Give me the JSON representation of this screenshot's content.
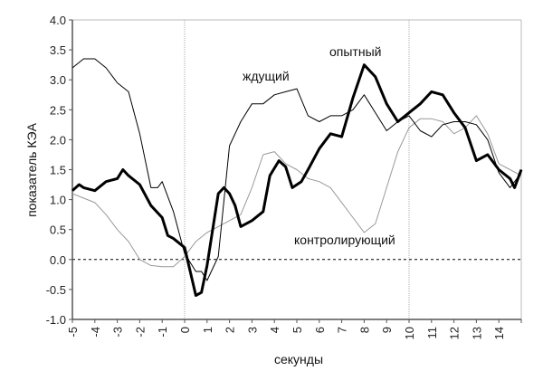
{
  "chart_data": {
    "type": "line",
    "title": "",
    "xlabel": "секунды",
    "ylabel": "показатель КЭА",
    "xlim": [
      -5,
      15
    ],
    "ylim": [
      -1.0,
      4.0
    ],
    "xticks": [
      "-5",
      "-4",
      "-3",
      "-2",
      "-1",
      "0",
      "1",
      "2",
      "3",
      "4",
      "5",
      "6",
      "7",
      "8",
      "9",
      "10",
      "11",
      "12",
      "13",
      "14"
    ],
    "yticks": [
      "4.0",
      "3.5",
      "3.0",
      "2.5",
      "2.0",
      "1.5",
      "1.0",
      "0.5",
      "0.0",
      "-0.5",
      "-1.0"
    ],
    "grid": false,
    "reference_lines": {
      "vertical_dotted_at": [
        0,
        10
      ],
      "horizontal_dashed_at": 0
    },
    "series": [
      {
        "name": "опытный",
        "color": "#000000",
        "style": "thick",
        "points": [
          [
            -5,
            1.15
          ],
          [
            -4.7,
            1.25
          ],
          [
            -4.5,
            1.2
          ],
          [
            -4,
            1.15
          ],
          [
            -3.5,
            1.3
          ],
          [
            -3,
            1.35
          ],
          [
            -2.75,
            1.5
          ],
          [
            -2.5,
            1.4
          ],
          [
            -2,
            1.25
          ],
          [
            -1.5,
            0.9
          ],
          [
            -1,
            0.7
          ],
          [
            -0.75,
            0.4
          ],
          [
            -0.5,
            0.35
          ],
          [
            0,
            0.2
          ],
          [
            0.25,
            -0.2
          ],
          [
            0.5,
            -0.6
          ],
          [
            0.75,
            -0.55
          ],
          [
            1,
            -0.1
          ],
          [
            1.5,
            1.1
          ],
          [
            1.75,
            1.2
          ],
          [
            2,
            1.1
          ],
          [
            2.25,
            0.9
          ],
          [
            2.5,
            0.55
          ],
          [
            3,
            0.65
          ],
          [
            3.5,
            0.8
          ],
          [
            3.8,
            1.4
          ],
          [
            4.2,
            1.65
          ],
          [
            4.5,
            1.55
          ],
          [
            4.8,
            1.2
          ],
          [
            5.2,
            1.3
          ],
          [
            5.5,
            1.5
          ],
          [
            6,
            1.85
          ],
          [
            6.5,
            2.1
          ],
          [
            7,
            2.05
          ],
          [
            7.5,
            2.7
          ],
          [
            8,
            3.25
          ],
          [
            8.5,
            3.05
          ],
          [
            9,
            2.6
          ],
          [
            9.5,
            2.3
          ],
          [
            10,
            2.45
          ],
          [
            10.5,
            2.6
          ],
          [
            11,
            2.8
          ],
          [
            11.5,
            2.75
          ],
          [
            12,
            2.45
          ],
          [
            12.5,
            2.2
          ],
          [
            13,
            1.65
          ],
          [
            13.5,
            1.75
          ],
          [
            14,
            1.5
          ],
          [
            14.5,
            1.35
          ],
          [
            14.7,
            1.2
          ],
          [
            15,
            1.5
          ]
        ]
      },
      {
        "name": "ждущий",
        "color": "#000000",
        "style": "thin",
        "points": [
          [
            -5,
            3.2
          ],
          [
            -4.5,
            3.35
          ],
          [
            -4,
            3.35
          ],
          [
            -3.5,
            3.2
          ],
          [
            -3,
            2.95
          ],
          [
            -2.5,
            2.8
          ],
          [
            -2,
            2.1
          ],
          [
            -1.5,
            1.2
          ],
          [
            -1.2,
            1.2
          ],
          [
            -1,
            1.3
          ],
          [
            -0.5,
            0.8
          ],
          [
            0,
            0.1
          ],
          [
            0.5,
            -0.2
          ],
          [
            0.75,
            -0.2
          ],
          [
            1,
            -0.35
          ],
          [
            1.5,
            0.05
          ],
          [
            2,
            1.9
          ],
          [
            2.5,
            2.3
          ],
          [
            3,
            2.6
          ],
          [
            3.5,
            2.6
          ],
          [
            4,
            2.75
          ],
          [
            4.5,
            2.8
          ],
          [
            5,
            2.85
          ],
          [
            5.5,
            2.4
          ],
          [
            6,
            2.3
          ],
          [
            6.5,
            2.4
          ],
          [
            7,
            2.4
          ],
          [
            7.5,
            2.5
          ],
          [
            8,
            2.75
          ],
          [
            8.5,
            2.45
          ],
          [
            9,
            2.15
          ],
          [
            9.5,
            2.3
          ],
          [
            10,
            2.4
          ],
          [
            10.5,
            2.15
          ],
          [
            11,
            2.05
          ],
          [
            11.5,
            2.25
          ],
          [
            12,
            2.3
          ],
          [
            12.5,
            2.3
          ],
          [
            13,
            2.25
          ],
          [
            13.5,
            2.0
          ],
          [
            14,
            1.45
          ],
          [
            14.5,
            1.2
          ],
          [
            15,
            1.45
          ]
        ]
      },
      {
        "name": "контролирующий",
        "color": "#999999",
        "style": "thin",
        "points": [
          [
            -5,
            1.1
          ],
          [
            -4,
            0.95
          ],
          [
            -3.5,
            0.75
          ],
          [
            -3,
            0.5
          ],
          [
            -2.5,
            0.3
          ],
          [
            -2,
            0.0
          ],
          [
            -1.5,
            -0.1
          ],
          [
            -1,
            -0.12
          ],
          [
            -0.5,
            -0.12
          ],
          [
            0,
            0.05
          ],
          [
            0.5,
            0.3
          ],
          [
            1,
            0.45
          ],
          [
            1.5,
            0.55
          ],
          [
            2,
            0.65
          ],
          [
            2.5,
            0.75
          ],
          [
            3,
            1.2
          ],
          [
            3.5,
            1.75
          ],
          [
            4,
            1.8
          ],
          [
            4.5,
            1.6
          ],
          [
            5,
            1.5
          ],
          [
            5.5,
            1.35
          ],
          [
            6,
            1.3
          ],
          [
            6.5,
            1.2
          ],
          [
            7,
            0.95
          ],
          [
            7.5,
            0.7
          ],
          [
            8,
            0.45
          ],
          [
            8.5,
            0.6
          ],
          [
            9,
            1.2
          ],
          [
            9.5,
            1.8
          ],
          [
            10,
            2.2
          ],
          [
            10.5,
            2.35
          ],
          [
            11,
            2.35
          ],
          [
            11.5,
            2.3
          ],
          [
            12,
            2.1
          ],
          [
            12.5,
            2.2
          ],
          [
            13,
            2.4
          ],
          [
            13.5,
            2.1
          ],
          [
            14,
            1.6
          ],
          [
            14.5,
            1.5
          ],
          [
            15,
            1.4
          ]
        ]
      }
    ]
  }
}
